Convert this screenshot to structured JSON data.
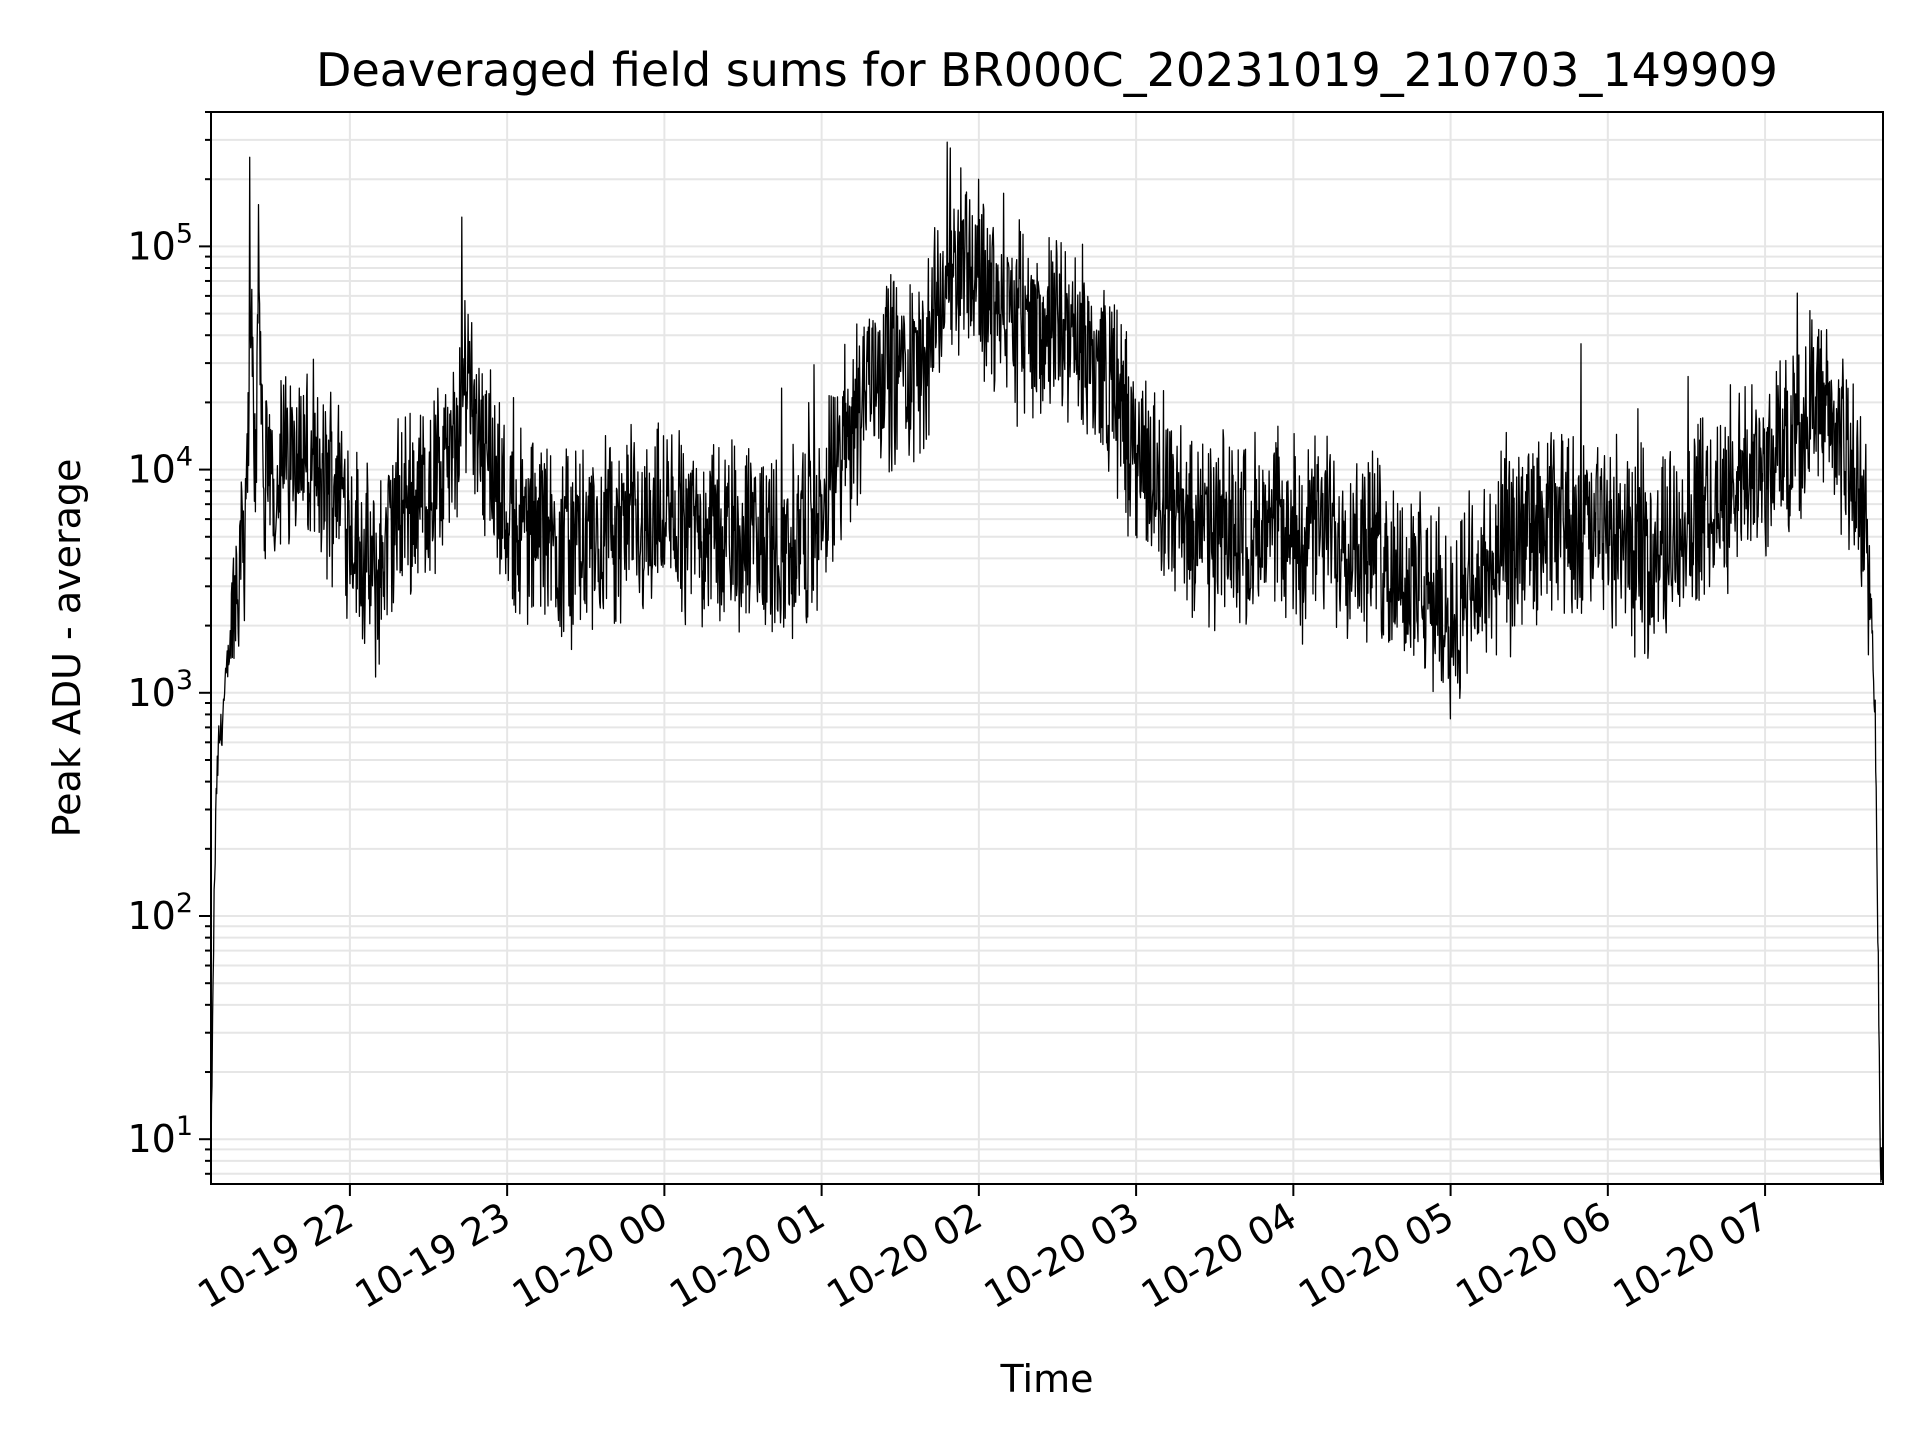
{
  "chart_data": {
    "type": "line",
    "title": "Deaveraged field sums for BR000C_20231019_210703_149909",
    "xlabel": "Time",
    "ylabel": "Peak ADU - average",
    "yscale": "log",
    "ylim": [
      6.3,
      400000
    ],
    "xlim": [
      "2023-10-19 21:07",
      "2023-10-20 07:45"
    ],
    "grid": true,
    "x_ticks": [
      {
        "t": "2023-10-19 22:00",
        "label": "10-19 22"
      },
      {
        "t": "2023-10-19 23:00",
        "label": "10-19 23"
      },
      {
        "t": "2023-10-20 00:00",
        "label": "10-20 00"
      },
      {
        "t": "2023-10-20 01:00",
        "label": "10-20 01"
      },
      {
        "t": "2023-10-20 02:00",
        "label": "10-20 02"
      },
      {
        "t": "2023-10-20 03:00",
        "label": "10-20 03"
      },
      {
        "t": "2023-10-20 04:00",
        "label": "10-20 04"
      },
      {
        "t": "2023-10-20 05:00",
        "label": "10-20 05"
      },
      {
        "t": "2023-10-20 06:00",
        "label": "10-20 06"
      },
      {
        "t": "2023-10-20 07:00",
        "label": "10-20 07"
      }
    ],
    "y_ticks": [
      {
        "value": 10,
        "base": "10",
        "exp": "1"
      },
      {
        "value": 100,
        "base": "10",
        "exp": "2"
      },
      {
        "value": 1000,
        "base": "10",
        "exp": "3"
      },
      {
        "value": 10000,
        "base": "10",
        "exp": "4"
      },
      {
        "value": 100000,
        "base": "10",
        "exp": "5"
      }
    ],
    "series": [
      {
        "color": "#000000",
        "x": [
          "2023-10-19 21:07",
          "2023-10-19 21:08",
          "2023-10-19 21:09",
          "2023-10-19 21:10",
          "2023-10-19 21:11",
          "2023-10-19 21:13",
          "2023-10-19 21:15",
          "2023-10-19 21:18",
          "2023-10-19 21:20",
          "2023-10-19 21:22",
          "2023-10-19 21:24",
          "2023-10-19 21:25",
          "2023-10-19 21:27",
          "2023-10-19 21:30",
          "2023-10-19 21:35",
          "2023-10-19 21:40",
          "2023-10-19 21:45",
          "2023-10-19 21:50",
          "2023-10-19 21:55",
          "2023-10-19 22:00",
          "2023-10-19 22:05",
          "2023-10-19 22:10",
          "2023-10-19 22:15",
          "2023-10-19 22:20",
          "2023-10-19 22:25",
          "2023-10-19 22:30",
          "2023-10-19 22:35",
          "2023-10-19 22:40",
          "2023-10-19 22:45",
          "2023-10-19 22:50",
          "2023-10-19 22:55",
          "2023-10-19 23:00",
          "2023-10-19 23:15",
          "2023-10-19 23:30",
          "2023-10-19 23:45",
          "2023-10-20 00:00",
          "2023-10-20 00:15",
          "2023-10-20 00:30",
          "2023-10-20 00:45",
          "2023-10-20 01:00",
          "2023-10-20 01:10",
          "2023-10-20 01:20",
          "2023-10-20 01:30",
          "2023-10-20 01:40",
          "2023-10-20 01:45",
          "2023-10-20 01:50",
          "2023-10-20 01:55",
          "2023-10-20 02:00",
          "2023-10-20 02:10",
          "2023-10-20 02:20",
          "2023-10-20 02:30",
          "2023-10-20 02:40",
          "2023-10-20 02:50",
          "2023-10-20 03:00",
          "2023-10-20 03:10",
          "2023-10-20 03:20",
          "2023-10-20 03:30",
          "2023-10-20 03:40",
          "2023-10-20 03:50",
          "2023-10-20 04:00",
          "2023-10-20 04:15",
          "2023-10-20 04:30",
          "2023-10-20 04:45",
          "2023-10-20 05:00",
          "2023-10-20 05:15",
          "2023-10-20 05:30",
          "2023-10-20 05:45",
          "2023-10-20 06:00",
          "2023-10-20 06:15",
          "2023-10-20 06:30",
          "2023-10-20 06:45",
          "2023-10-20 07:00",
          "2023-10-20 07:10",
          "2023-10-20 07:20",
          "2023-10-20 07:30",
          "2023-10-20 07:35",
          "2023-10-20 07:40",
          "2023-10-20 07:42",
          "2023-10-20 07:43",
          "2023-10-20 07:44"
        ],
        "y": [
          7,
          80,
          350,
          600,
          700,
          1200,
          2000,
          4500,
          6000,
          45000,
          8000,
          120000,
          7000,
          9000,
          11000,
          14000,
          9000,
          8000,
          10000,
          6000,
          4000,
          3000,
          5000,
          7000,
          7500,
          8000,
          9000,
          12000,
          30000,
          15000,
          10000,
          6000,
          5000,
          4500,
          5500,
          6000,
          5500,
          5000,
          4500,
          6000,
          15000,
          30000,
          28000,
          30000,
          60000,
          80000,
          100000,
          70000,
          50000,
          45000,
          40000,
          35000,
          25000,
          12000,
          8000,
          5500,
          5000,
          5500,
          5000,
          5000,
          5500,
          4500,
          3000,
          2200,
          3500,
          5000,
          6000,
          5000,
          4000,
          5500,
          8000,
          10000,
          15000,
          20000,
          13000,
          8000,
          3500,
          800,
          100,
          8
        ]
      }
    ]
  }
}
